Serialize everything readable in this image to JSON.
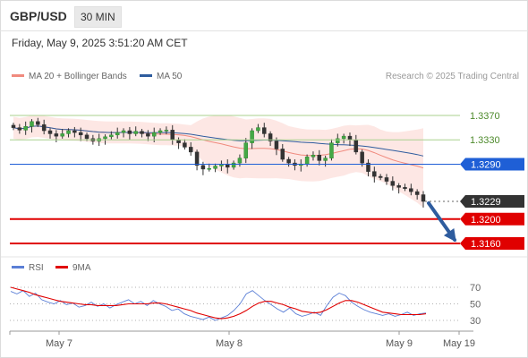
{
  "header": {
    "symbol": "GBP/USD",
    "timeframe": "30 MIN"
  },
  "datetime": "Friday, May 9, 2025 3:51:20 AM CET",
  "legend": {
    "ma20": "MA 20 + Bollinger Bands",
    "ma50": "MA 50",
    "ma20_color": "#f08a7e",
    "ma50_color": "#2e5c9e"
  },
  "credit": "Research © 2025 Trading Central",
  "rsi_legend": {
    "rsi": "RSI",
    "ma9": "9MA",
    "rsi_color": "#5b7fd6",
    "ma9_color": "#e00000"
  },
  "chart_data": [
    {
      "type": "line",
      "subtype": "candlestick",
      "ylim": [
        1.3137,
        1.3416
      ],
      "close_series": [
        1.335,
        1.3346,
        1.3352,
        1.336,
        1.3355,
        1.3345,
        1.334,
        1.3336,
        1.334,
        1.3345,
        1.3342,
        1.3338,
        1.3332,
        1.3328,
        1.3332,
        1.3335,
        1.3338,
        1.3342,
        1.3345,
        1.334,
        1.3344,
        1.334,
        1.3336,
        1.3342,
        1.3345,
        1.3346,
        1.333,
        1.3325,
        1.3318,
        1.331,
        1.3288,
        1.3282,
        1.3283,
        1.3287,
        1.329,
        1.3285,
        1.3292,
        1.33,
        1.3325,
        1.3345,
        1.335,
        1.334,
        1.3328,
        1.3315,
        1.3298,
        1.3292,
        1.3288,
        1.329,
        1.3302,
        1.3305,
        1.3296,
        1.33,
        1.3325,
        1.3332,
        1.3336,
        1.333,
        1.331,
        1.3292,
        1.3278,
        1.327,
        1.3268,
        1.3262,
        1.3255,
        1.3252,
        1.325,
        1.3245,
        1.324,
        1.3229
      ],
      "horizontal_levels": [
        {
          "value": 1.337,
          "label": "1.3370",
          "color": "#a9d18e",
          "style": "resistance"
        },
        {
          "value": 1.333,
          "label": "1.3330",
          "color": "#a9d18e",
          "style": "resistance"
        },
        {
          "value": 1.329,
          "label": "1.3290",
          "color": "#1f5fd6",
          "style": "pivot"
        },
        {
          "value": 1.3229,
          "label": "1.3229",
          "color": "#333333",
          "style": "last"
        },
        {
          "value": 1.32,
          "label": "1.3200",
          "color": "#e00000",
          "style": "support"
        },
        {
          "value": 1.316,
          "label": "1.3160",
          "color": "#e00000",
          "style": "support"
        }
      ],
      "arrow": {
        "from": 1.3229,
        "to": 1.316,
        "direction": "down"
      },
      "x_tick_labels": [
        "May 7",
        "May 8",
        "May 9",
        "May 19"
      ]
    },
    {
      "type": "line",
      "title": "RSI",
      "ylim": [
        20,
        80
      ],
      "y_tick_labels": [
        "70",
        "50",
        "30"
      ],
      "series": [
        {
          "name": "RSI",
          "values": [
            65,
            62,
            66,
            59,
            63,
            55,
            52,
            50,
            54,
            49,
            51,
            46,
            48,
            52,
            47,
            50,
            45,
            49,
            52,
            55,
            50,
            53,
            48,
            54,
            50,
            47,
            42,
            44,
            38,
            35,
            33,
            31,
            34,
            30,
            33,
            36,
            42,
            50,
            62,
            66,
            60,
            54,
            49,
            44,
            40,
            45,
            38,
            35,
            37,
            40,
            36,
            48,
            58,
            63,
            60,
            52,
            47,
            43,
            40,
            38,
            36,
            38,
            35,
            37,
            40,
            36,
            38,
            39
          ]
        },
        {
          "name": "9MA",
          "values": [
            70,
            68,
            66,
            64,
            61,
            59,
            57,
            55,
            53,
            52,
            51,
            50,
            49,
            49,
            48,
            48,
            48,
            48,
            49,
            50,
            50,
            50,
            50,
            51,
            51,
            50,
            48,
            46,
            44,
            42,
            39,
            37,
            35,
            33,
            32,
            33,
            35,
            38,
            42,
            47,
            51,
            53,
            53,
            51,
            49,
            46,
            44,
            41,
            40,
            39,
            40,
            43,
            47,
            51,
            54,
            54,
            52,
            49,
            46,
            43,
            40,
            39,
            38,
            37,
            37,
            37,
            37,
            38
          ]
        }
      ]
    }
  ]
}
